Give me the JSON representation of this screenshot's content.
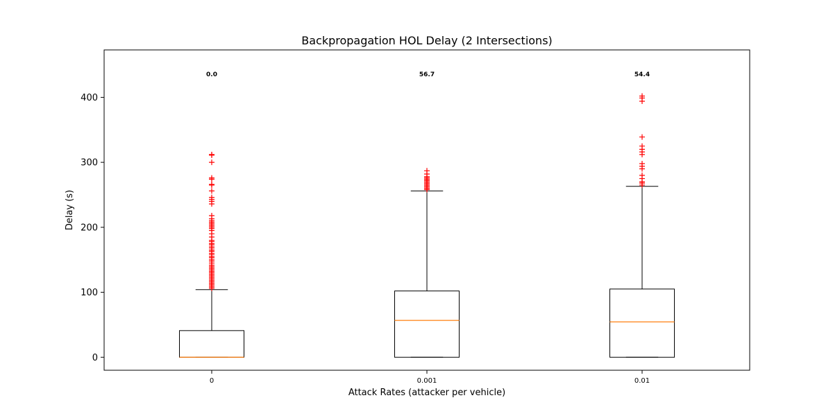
{
  "chart_data": {
    "type": "box",
    "title": "Backpropagation HOL Delay (2 Intersections)",
    "xlabel": "Attack Rates (attacker per vehicle)",
    "ylabel": "Delay (s)",
    "ylim": [
      -20,
      473
    ],
    "yticks": [
      0,
      100,
      200,
      300,
      400
    ],
    "categories": [
      "0",
      "0.001",
      "0.01"
    ],
    "grid": false,
    "boxes": [
      {
        "label": "0",
        "median_annotation": "0.0",
        "whisker_low": 0,
        "q1": 0,
        "median": 0,
        "q3": 41,
        "whisker_high": 104,
        "outliers": [
          106,
          108,
          110,
          112,
          114,
          116,
          118,
          120,
          122,
          124,
          126,
          128,
          130,
          132,
          134,
          136,
          138,
          140,
          142,
          145,
          148,
          150,
          153,
          155,
          158,
          160,
          163,
          165,
          168,
          170,
          173,
          175,
          178,
          180,
          185,
          190,
          195,
          198,
          200,
          202,
          204,
          206,
          208,
          210,
          213,
          218,
          236,
          240,
          243,
          246,
          256,
          265,
          266,
          274,
          276,
          300,
          311,
          312
        ]
      },
      {
        "label": "0.001",
        "median_annotation": "56.7",
        "whisker_low": 0,
        "q1": 0,
        "median": 56.7,
        "q3": 102,
        "whisker_high": 256,
        "outliers": [
          258,
          260,
          262,
          264,
          266,
          268,
          270,
          272,
          274,
          276,
          278,
          282,
          287
        ]
      },
      {
        "label": "0.01",
        "median_annotation": "54.4",
        "whisker_low": 0,
        "q1": 0,
        "median": 54.4,
        "q3": 105,
        "whisker_high": 263,
        "outliers": [
          265,
          268,
          270,
          275,
          280,
          290,
          294,
          298,
          312,
          316,
          320,
          325,
          339,
          394,
          399,
          402
        ]
      }
    ]
  }
}
